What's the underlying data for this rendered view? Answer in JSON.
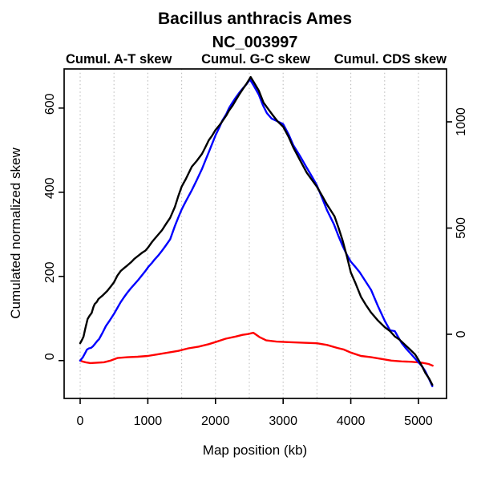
{
  "chart_data": {
    "type": "line",
    "title": "Bacillus anthracis Ames",
    "subtitle": "NC_003997",
    "xlabel": "Map position (kb)",
    "ylabel_left": "Cumulated normalized skew",
    "grid": "dotted-vertical",
    "legend_position": "top",
    "colors": {
      "at_skew": "#FF0000",
      "gc_skew": "#0000FF",
      "cds_skew": "#000000",
      "grid": "#bdbdbd"
    },
    "legend": [
      {
        "label": "Cumul. A-T skew",
        "color": "#FF0000"
      },
      {
        "label": "Cumul. G-C skew",
        "color": "#0000FF"
      },
      {
        "label": "Cumul. CDS skew",
        "color": "#000000"
      }
    ],
    "axes": {
      "x": {
        "ticks": [
          0,
          1000,
          2000,
          3000,
          4000,
          5000
        ],
        "grid": [
          0,
          500,
          1000,
          1500,
          2000,
          2500,
          3000,
          3500,
          4000,
          4500,
          5000
        ],
        "range": [
          -237,
          5415
        ]
      },
      "left": {
        "ticks": [
          0,
          200,
          400,
          600
        ],
        "range": [
          -90,
          693
        ]
      },
      "right": {
        "ticks": [
          0,
          500,
          1000
        ],
        "range": [
          -302,
          1249
        ]
      }
    },
    "series": [
      {
        "name": "Cumul. A-T skew",
        "id": "at_skew",
        "color": "#FF0000",
        "axis": "left",
        "points": [
          [
            0,
            0
          ],
          [
            30,
            -2
          ],
          [
            80,
            -4
          ],
          [
            150,
            -6
          ],
          [
            250,
            -5
          ],
          [
            350,
            -4
          ],
          [
            450,
            0
          ],
          [
            550,
            6
          ],
          [
            700,
            8
          ],
          [
            850,
            9
          ],
          [
            1000,
            11
          ],
          [
            1150,
            15
          ],
          [
            1300,
            19
          ],
          [
            1450,
            23
          ],
          [
            1600,
            29
          ],
          [
            1750,
            33
          ],
          [
            1900,
            39
          ],
          [
            2000,
            44
          ],
          [
            2150,
            52
          ],
          [
            2300,
            57
          ],
          [
            2400,
            61
          ],
          [
            2480,
            63
          ],
          [
            2560,
            66
          ],
          [
            2650,
            56
          ],
          [
            2750,
            48
          ],
          [
            2900,
            45
          ],
          [
            3050,
            44
          ],
          [
            3200,
            43
          ],
          [
            3350,
            42
          ],
          [
            3500,
            41
          ],
          [
            3650,
            37
          ],
          [
            3800,
            30
          ],
          [
            3900,
            26
          ],
          [
            4000,
            19
          ],
          [
            4150,
            11
          ],
          [
            4300,
            8
          ],
          [
            4450,
            4
          ],
          [
            4600,
            0
          ],
          [
            4750,
            -2
          ],
          [
            4900,
            -3
          ],
          [
            5050,
            -5
          ],
          [
            5150,
            -8
          ],
          [
            5210,
            -12
          ]
        ]
      },
      {
        "name": "Cumul. G-C skew",
        "id": "gc_skew",
        "color": "#0000FF",
        "axis": "left",
        "points": [
          [
            0,
            0
          ],
          [
            40,
            8
          ],
          [
            60,
            14
          ],
          [
            80,
            20
          ],
          [
            100,
            26
          ],
          [
            130,
            29
          ],
          [
            160,
            30
          ],
          [
            190,
            34
          ],
          [
            220,
            40
          ],
          [
            250,
            46
          ],
          [
            280,
            51
          ],
          [
            330,
            66
          ],
          [
            380,
            82
          ],
          [
            440,
            96
          ],
          [
            500,
            111
          ],
          [
            550,
            125
          ],
          [
            600,
            139
          ],
          [
            650,
            151
          ],
          [
            700,
            162
          ],
          [
            750,
            172
          ],
          [
            800,
            181
          ],
          [
            860,
            192
          ],
          [
            920,
            204
          ],
          [
            965,
            213
          ],
          [
            1010,
            223
          ],
          [
            1060,
            232
          ],
          [
            1100,
            240
          ],
          [
            1150,
            249
          ],
          [
            1200,
            259
          ],
          [
            1260,
            272
          ],
          [
            1330,
            288
          ],
          [
            1400,
            320
          ],
          [
            1450,
            340
          ],
          [
            1500,
            359
          ],
          [
            1560,
            378
          ],
          [
            1650,
            405
          ],
          [
            1720,
            428
          ],
          [
            1800,
            455
          ],
          [
            1850,
            475
          ],
          [
            1900,
            495
          ],
          [
            1950,
            515
          ],
          [
            2000,
            535
          ],
          [
            2060,
            555
          ],
          [
            2100,
            570
          ],
          [
            2160,
            586
          ],
          [
            2200,
            600
          ],
          [
            2250,
            613
          ],
          [
            2300,
            625
          ],
          [
            2350,
            636
          ],
          [
            2400,
            646
          ],
          [
            2460,
            657
          ],
          [
            2510,
            668
          ],
          [
            2570,
            652
          ],
          [
            2640,
            632
          ],
          [
            2700,
            607
          ],
          [
            2760,
            588
          ],
          [
            2830,
            575
          ],
          [
            2900,
            570
          ],
          [
            3000,
            562
          ],
          [
            3080,
            538
          ],
          [
            3150,
            512
          ],
          [
            3250,
            486
          ],
          [
            3350,
            458
          ],
          [
            3430,
            436
          ],
          [
            3500,
            416
          ],
          [
            3580,
            385
          ],
          [
            3650,
            357
          ],
          [
            3750,
            324
          ],
          [
            3820,
            295
          ],
          [
            3880,
            272
          ],
          [
            3940,
            252
          ],
          [
            4000,
            235
          ],
          [
            4070,
            222
          ],
          [
            4130,
            210
          ],
          [
            4220,
            188
          ],
          [
            4300,
            168
          ],
          [
            4400,
            130
          ],
          [
            4500,
            95
          ],
          [
            4580,
            72
          ],
          [
            4650,
            70
          ],
          [
            4750,
            42
          ],
          [
            4820,
            28
          ],
          [
            4900,
            14
          ],
          [
            5000,
            -4
          ],
          [
            5060,
            -15
          ],
          [
            5100,
            -25
          ],
          [
            5160,
            -45
          ],
          [
            5205,
            -61
          ]
        ]
      },
      {
        "name": "Cumul. CDS skew",
        "id": "cds_skew",
        "color": "#000000",
        "axis": "right",
        "points": [
          [
            0,
            -42
          ],
          [
            25,
            -28
          ],
          [
            50,
            -11
          ],
          [
            75,
            25
          ],
          [
            110,
            72
          ],
          [
            140,
            88
          ],
          [
            170,
            100
          ],
          [
            195,
            128
          ],
          [
            215,
            142
          ],
          [
            245,
            152
          ],
          [
            270,
            166
          ],
          [
            330,
            182
          ],
          [
            400,
            204
          ],
          [
            450,
            224
          ],
          [
            500,
            245
          ],
          [
            550,
            276
          ],
          [
            600,
            298
          ],
          [
            650,
            312
          ],
          [
            700,
            325
          ],
          [
            755,
            340
          ],
          [
            800,
            355
          ],
          [
            860,
            370
          ],
          [
            920,
            385
          ],
          [
            965,
            394
          ],
          [
            1010,
            411
          ],
          [
            1060,
            434
          ],
          [
            1100,
            449
          ],
          [
            1150,
            468
          ],
          [
            1210,
            490
          ],
          [
            1270,
            520
          ],
          [
            1330,
            548
          ],
          [
            1400,
            600
          ],
          [
            1450,
            650
          ],
          [
            1500,
            695
          ],
          [
            1560,
            730
          ],
          [
            1650,
            789
          ],
          [
            1720,
            815
          ],
          [
            1800,
            849
          ],
          [
            1850,
            880
          ],
          [
            1900,
            913
          ],
          [
            1950,
            935
          ],
          [
            2000,
            962
          ],
          [
            2060,
            985
          ],
          [
            2100,
            1002
          ],
          [
            2160,
            1030
          ],
          [
            2200,
            1053
          ],
          [
            2250,
            1075
          ],
          [
            2300,
            1102
          ],
          [
            2350,
            1128
          ],
          [
            2400,
            1152
          ],
          [
            2460,
            1180
          ],
          [
            2520,
            1211
          ],
          [
            2570,
            1185
          ],
          [
            2640,
            1147
          ],
          [
            2710,
            1091
          ],
          [
            2780,
            1060
          ],
          [
            2850,
            1030
          ],
          [
            2920,
            1002
          ],
          [
            3000,
            977
          ],
          [
            3080,
            930
          ],
          [
            3150,
            880
          ],
          [
            3250,
            819
          ],
          [
            3350,
            760
          ],
          [
            3430,
            725
          ],
          [
            3500,
            694
          ],
          [
            3580,
            650
          ],
          [
            3650,
            610
          ],
          [
            3700,
            585
          ],
          [
            3760,
            555
          ],
          [
            3820,
            500
          ],
          [
            3880,
            440
          ],
          [
            3940,
            370
          ],
          [
            4000,
            291
          ],
          [
            4070,
            240
          ],
          [
            4150,
            177
          ],
          [
            4220,
            140
          ],
          [
            4300,
            102
          ],
          [
            4400,
            65
          ],
          [
            4500,
            34
          ],
          [
            4580,
            15
          ],
          [
            4650,
            -10
          ],
          [
            4720,
            -25
          ],
          [
            4800,
            -49
          ],
          [
            4870,
            -70
          ],
          [
            4950,
            -95
          ],
          [
            5000,
            -120
          ],
          [
            5060,
            -155
          ],
          [
            5100,
            -181
          ],
          [
            5160,
            -210
          ],
          [
            5205,
            -238
          ]
        ]
      }
    ]
  }
}
